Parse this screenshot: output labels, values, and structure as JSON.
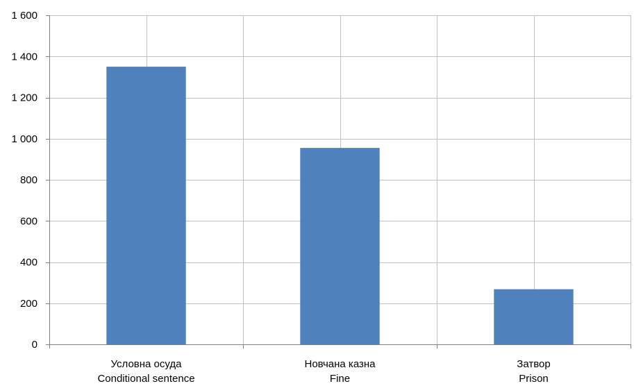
{
  "chart_data": {
    "type": "bar",
    "categories": [
      [
        "Условна осуда",
        "Conditional sentence"
      ],
      [
        "Новчана казна",
        "Fine"
      ],
      [
        "Затвор",
        "Prison"
      ]
    ],
    "values": [
      1350,
      955,
      268
    ],
    "ylim": [
      0,
      1600
    ],
    "yticks": [
      0,
      200,
      400,
      600,
      800,
      1000,
      1200,
      1400,
      1600
    ],
    "ytick_labels": [
      "0",
      "200",
      "400",
      "600",
      "800",
      "1 000",
      "1 200",
      "1 400",
      "1 600"
    ],
    "grid": true,
    "bar_color": "#4f81bd",
    "grid_color": "#c0c0c0",
    "axis_color": "#808080"
  }
}
